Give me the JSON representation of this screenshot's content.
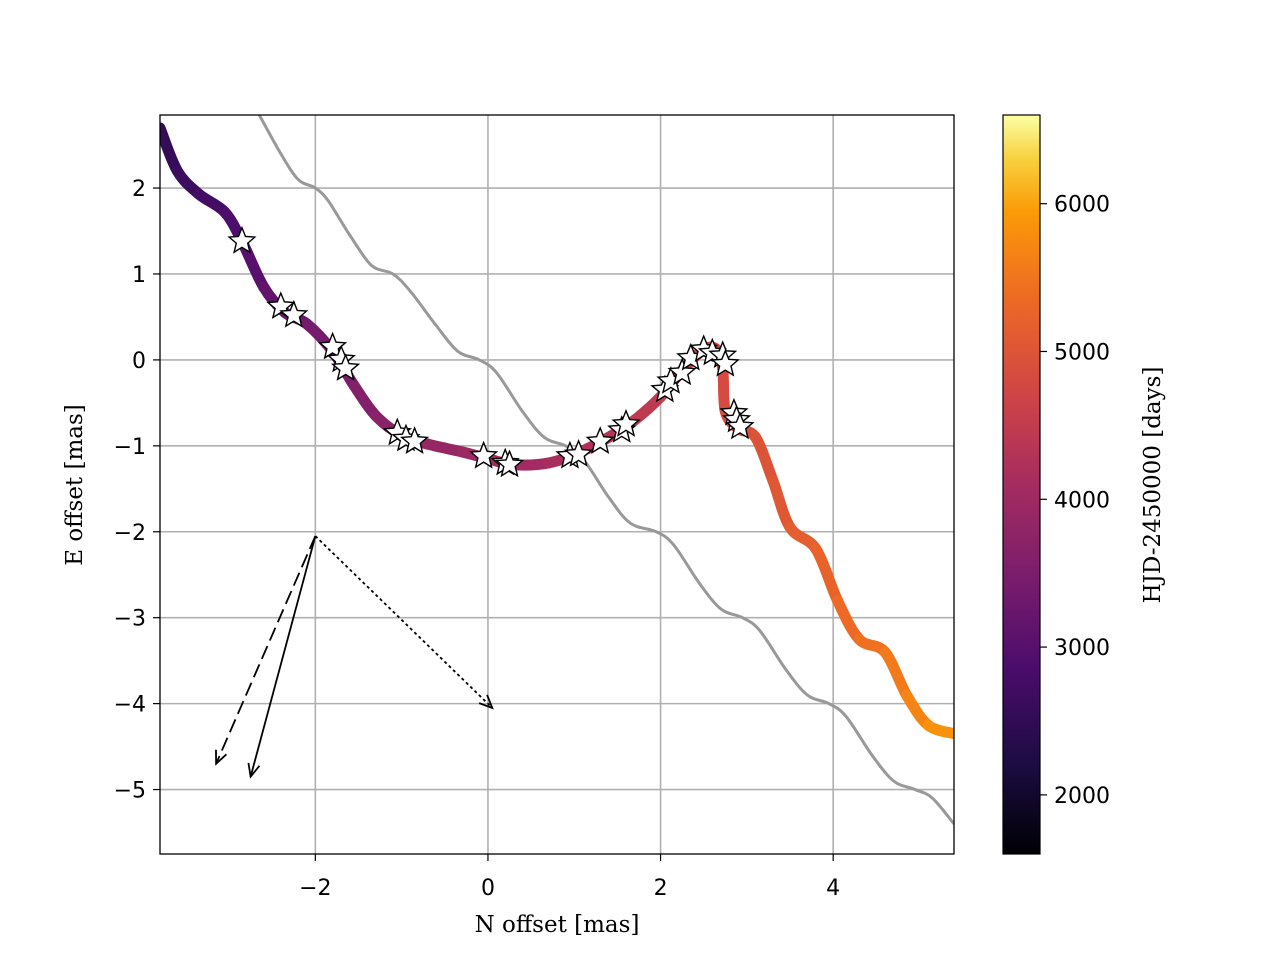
{
  "chart_data": {
    "type": "line",
    "xlabel": "N offset [mas]",
    "ylabel": "E offset [mas]",
    "xlim": [
      -3.8,
      5.4
    ],
    "ylim": [
      -5.75,
      2.85
    ],
    "xticks": [
      -2,
      0,
      2,
      4
    ],
    "yticks": [
      -5,
      -4,
      -3,
      -2,
      -1,
      0,
      1,
      2
    ],
    "xtick_labels": [
      "−2",
      "0",
      "2",
      "4"
    ],
    "ytick_labels": [
      "−5",
      "−4",
      "−3",
      "−2",
      "−1",
      "0",
      "1",
      "2"
    ],
    "grid": true,
    "colorbar": {
      "label": "HJD-2450000 [days]",
      "range": [
        1600,
        6600
      ],
      "ticks": [
        2000,
        3000,
        4000,
        5000,
        6000
      ],
      "tick_labels": [
        "2000",
        "3000",
        "4000",
        "5000",
        "6000"
      ],
      "colormap": "inferno"
    },
    "series": [
      {
        "style": "grey-line",
        "color": "#999999",
        "points": [
          [
            -2.65,
            2.85
          ],
          [
            -2.4,
            2.4
          ],
          [
            -2.2,
            2.1
          ],
          [
            -2.0,
            2.0
          ],
          [
            -1.85,
            1.85
          ],
          [
            -1.6,
            1.45
          ],
          [
            -1.35,
            1.1
          ],
          [
            -1.1,
            1.0
          ],
          [
            -0.9,
            0.8
          ],
          [
            -0.6,
            0.4
          ],
          [
            -0.35,
            0.1
          ],
          [
            -0.1,
            0.0
          ],
          [
            0.1,
            -0.15
          ],
          [
            0.4,
            -0.6
          ],
          [
            0.65,
            -0.9
          ],
          [
            0.9,
            -1.0
          ],
          [
            1.1,
            -1.15
          ],
          [
            1.4,
            -1.6
          ],
          [
            1.65,
            -1.9
          ],
          [
            1.95,
            -2.0
          ],
          [
            2.15,
            -2.15
          ],
          [
            2.45,
            -2.6
          ],
          [
            2.7,
            -2.9
          ],
          [
            2.95,
            -3.0
          ],
          [
            3.15,
            -3.15
          ],
          [
            3.45,
            -3.6
          ],
          [
            3.7,
            -3.9
          ],
          [
            3.95,
            -4.0
          ],
          [
            4.15,
            -4.15
          ],
          [
            4.45,
            -4.6
          ],
          [
            4.7,
            -4.9
          ],
          [
            4.95,
            -5.0
          ],
          [
            5.15,
            -5.1
          ],
          [
            5.4,
            -5.4
          ]
        ]
      },
      {
        "style": "colored-track",
        "points": [
          [
            -3.8,
            2.7,
            2500
          ],
          [
            -3.6,
            2.2,
            2600
          ],
          [
            -3.35,
            1.93,
            2700
          ],
          [
            -3.05,
            1.72,
            2800
          ],
          [
            -2.85,
            1.38,
            2950
          ],
          [
            -2.6,
            0.85,
            3100
          ],
          [
            -2.35,
            0.55,
            3250
          ],
          [
            -2.1,
            0.42,
            3350
          ],
          [
            -1.8,
            0.1,
            3450
          ],
          [
            -1.55,
            -0.3,
            3550
          ],
          [
            -1.3,
            -0.65,
            3650
          ],
          [
            -1.0,
            -0.88,
            3750
          ],
          [
            -0.7,
            -0.98,
            3850
          ],
          [
            -0.3,
            -1.07,
            3950
          ],
          [
            0.0,
            -1.15,
            4000
          ],
          [
            0.3,
            -1.22,
            4050
          ],
          [
            0.7,
            -1.2,
            4100
          ],
          [
            1.05,
            -1.08,
            4200
          ],
          [
            1.4,
            -0.9,
            4300
          ],
          [
            1.7,
            -0.7,
            4400
          ],
          [
            2.0,
            -0.43,
            4500
          ],
          [
            2.25,
            -0.12,
            4600
          ],
          [
            2.5,
            0.12,
            4700
          ],
          [
            2.65,
            0.12,
            4750
          ],
          [
            2.72,
            -0.1,
            4800
          ],
          [
            2.75,
            -0.6,
            4850
          ],
          [
            2.9,
            -0.8,
            4900
          ],
          [
            3.1,
            -0.9,
            4950
          ],
          [
            3.3,
            -1.4,
            5000
          ],
          [
            3.5,
            -1.95,
            5100
          ],
          [
            3.8,
            -2.2,
            5200
          ],
          [
            4.05,
            -2.8,
            5300
          ],
          [
            4.3,
            -3.25,
            5400
          ],
          [
            4.6,
            -3.4,
            5500
          ],
          [
            4.85,
            -3.9,
            5600
          ],
          [
            5.1,
            -4.25,
            5750
          ],
          [
            5.4,
            -4.35,
            5900
          ]
        ]
      }
    ],
    "star_markers": [
      [
        -2.85,
        1.38
      ],
      [
        -2.4,
        0.62
      ],
      [
        -2.25,
        0.52
      ],
      [
        -1.8,
        0.15
      ],
      [
        -1.7,
        0.0
      ],
      [
        -1.65,
        -0.1
      ],
      [
        -1.05,
        -0.85
      ],
      [
        -0.95,
        -0.92
      ],
      [
        -0.85,
        -0.95
      ],
      [
        -0.05,
        -1.12
      ],
      [
        0.2,
        -1.2
      ],
      [
        0.25,
        -1.22
      ],
      [
        0.95,
        -1.12
      ],
      [
        1.05,
        -1.1
      ],
      [
        1.3,
        -0.95
      ],
      [
        1.55,
        -0.82
      ],
      [
        1.6,
        -0.75
      ],
      [
        2.05,
        -0.35
      ],
      [
        2.12,
        -0.25
      ],
      [
        2.25,
        -0.15
      ],
      [
        2.35,
        0.02
      ],
      [
        2.5,
        0.12
      ],
      [
        2.6,
        0.08
      ],
      [
        2.72,
        0.05
      ],
      [
        2.75,
        -0.05
      ],
      [
        2.85,
        -0.62
      ],
      [
        2.88,
        -0.7
      ],
      [
        2.92,
        -0.78
      ]
    ],
    "arrows": [
      {
        "style": "solid",
        "from": [
          -2.0,
          -2.05
        ],
        "to": [
          -2.75,
          -4.85
        ]
      },
      {
        "style": "dashed",
        "from": [
          -2.0,
          -2.05
        ],
        "to": [
          -3.15,
          -4.7
        ]
      },
      {
        "style": "dotted",
        "from": [
          -2.0,
          -2.05
        ],
        "to": [
          0.05,
          -4.05
        ]
      }
    ]
  }
}
